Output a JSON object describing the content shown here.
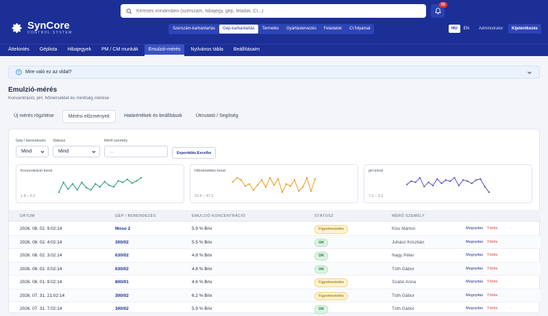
{
  "brand": {
    "name": "SynCore",
    "tagline": "CONTROL SYSTEM"
  },
  "search": {
    "placeholder": "Keresés mindenben (szerszám, hibajegy, gép, feladat, CI...)"
  },
  "notifications": {
    "count": "53"
  },
  "modules": [
    {
      "label": "Szerszám-karbantartás",
      "active": false
    },
    {
      "label": "Gép-karbantartás",
      "active": true
    },
    {
      "label": "Termelés",
      "active": false
    },
    {
      "label": "Gyártástervezés",
      "active": false
    },
    {
      "label": "Feladatok",
      "active": false
    },
    {
      "label": "CI folyamat",
      "active": false
    }
  ],
  "languages": {
    "hu": "HU",
    "en": "EN",
    "active": "HU"
  },
  "user": {
    "name": "Administrator",
    "logout": "Kijelentkezés"
  },
  "subnav": [
    {
      "label": "Áttekintés",
      "active": false
    },
    {
      "label": "Géplista",
      "active": false
    },
    {
      "label": "Hibajegyek",
      "active": false
    },
    {
      "label": "PM / CM munkák",
      "active": false
    },
    {
      "label": "Emulzió-mérés",
      "active": true
    },
    {
      "label": "Nyilvános tábla",
      "active": false
    },
    {
      "label": "Beállításaim",
      "active": false
    }
  ],
  "help": {
    "label": "Mire való ez az oldal?"
  },
  "page": {
    "title": "Emulzió-mérés",
    "subtitle": "Koncentráció, pH, hőmérséklet és minőség mérése"
  },
  "tabs": [
    {
      "label": "Új mérés rögzítése",
      "active": false
    },
    {
      "label": "Mérési előzmények",
      "active": true
    },
    {
      "label": "Határértékek és beállítások",
      "active": false
    },
    {
      "label": "Útmutató / Segítség",
      "active": false
    }
  ],
  "filters": {
    "machine_label": "Gép / berendezés",
    "machine_value": "Mind",
    "status_label": "Státusz",
    "status_value": "Mind",
    "person_label": "Mérő személy",
    "person_placeholder": "...",
    "export_label": "Exportálás Excelbe"
  },
  "trends": [
    {
      "title": "Koncentráció trend",
      "range": "1.8 – 6.2",
      "color": "#1e9a6e",
      "values": [
        4.3,
        5.6,
        4.7,
        5.4,
        4.6,
        5.6,
        4.9,
        4.6,
        5.4,
        5.0,
        5.7,
        5.2,
        5.0,
        5.8,
        5.6,
        6.0,
        5.5,
        5.8,
        6.2
      ]
    },
    {
      "title": "Hőmérséklet trend",
      "range": "22.6 – 47.2",
      "color": "#e8991c",
      "values": [
        40,
        44,
        42,
        36,
        38,
        32,
        37,
        42,
        35,
        44,
        37,
        43,
        30,
        38,
        36,
        42,
        31,
        35,
        44,
        31,
        43
      ]
    },
    {
      "title": "pH trend",
      "range": "7.2 – 9.2",
      "color": "#4b4fc8",
      "values": [
        8.2,
        8.5,
        8.4,
        8.8,
        8.0,
        8.4,
        8.1,
        8.7,
        8.3,
        8.6,
        8.5,
        8.8,
        8.1,
        8.6,
        8.5,
        8.3,
        8.6,
        8.7,
        8.0,
        7.5
      ]
    }
  ],
  "table": {
    "headers": [
      "Dátum",
      "Gép / berendezés",
      "Emulzió koncentráció",
      "Státusz",
      "Mérő személy"
    ],
    "open_label": "Megnyitás",
    "delete_label": "Törlés",
    "rows": [
      {
        "date": "2026. 08. 02. 9:02:14",
        "machine": "Moso 2",
        "conc": "5.9 % Brix",
        "status": "Figyelmeztetés",
        "status_type": "warn",
        "person": "Kiss Márton"
      },
      {
        "date": "2026. 08. 02. 4:02:14",
        "machine": "300/02",
        "conc": "5.5 % Brix",
        "status": "OK",
        "status_type": "ok",
        "person": "Juhász Krisztián"
      },
      {
        "date": "2026. 08. 02. 3:02:14",
        "machine": "630/02",
        "conc": "4.8 % Brix",
        "status": "OK",
        "status_type": "ok",
        "person": "Nagy Péter"
      },
      {
        "date": "2026. 08. 02. 0:02:14",
        "machine": "630/02",
        "conc": "4.8 % Brix",
        "status": "OK",
        "status_type": "ok",
        "person": "Tóth Gábor"
      },
      {
        "date": "2026. 08. 01. 9:02:14",
        "machine": "800/01",
        "conc": "4.6 % Brix",
        "status": "Figyelmeztetés",
        "status_type": "warn",
        "person": "Szabó Anna"
      },
      {
        "date": "2026. 07. 31. 21:02:14",
        "machine": "300/02",
        "conc": "6.2 % Brix",
        "status": "Figyelmeztetés",
        "status_type": "warn",
        "person": "Tóth Gábor"
      },
      {
        "date": "2026. 07. 31. 7:02:14",
        "machine": "300/02",
        "conc": "5.9 % Brix",
        "status": "OK",
        "status_type": "ok",
        "person": "Tóth Gábor"
      }
    ]
  }
}
